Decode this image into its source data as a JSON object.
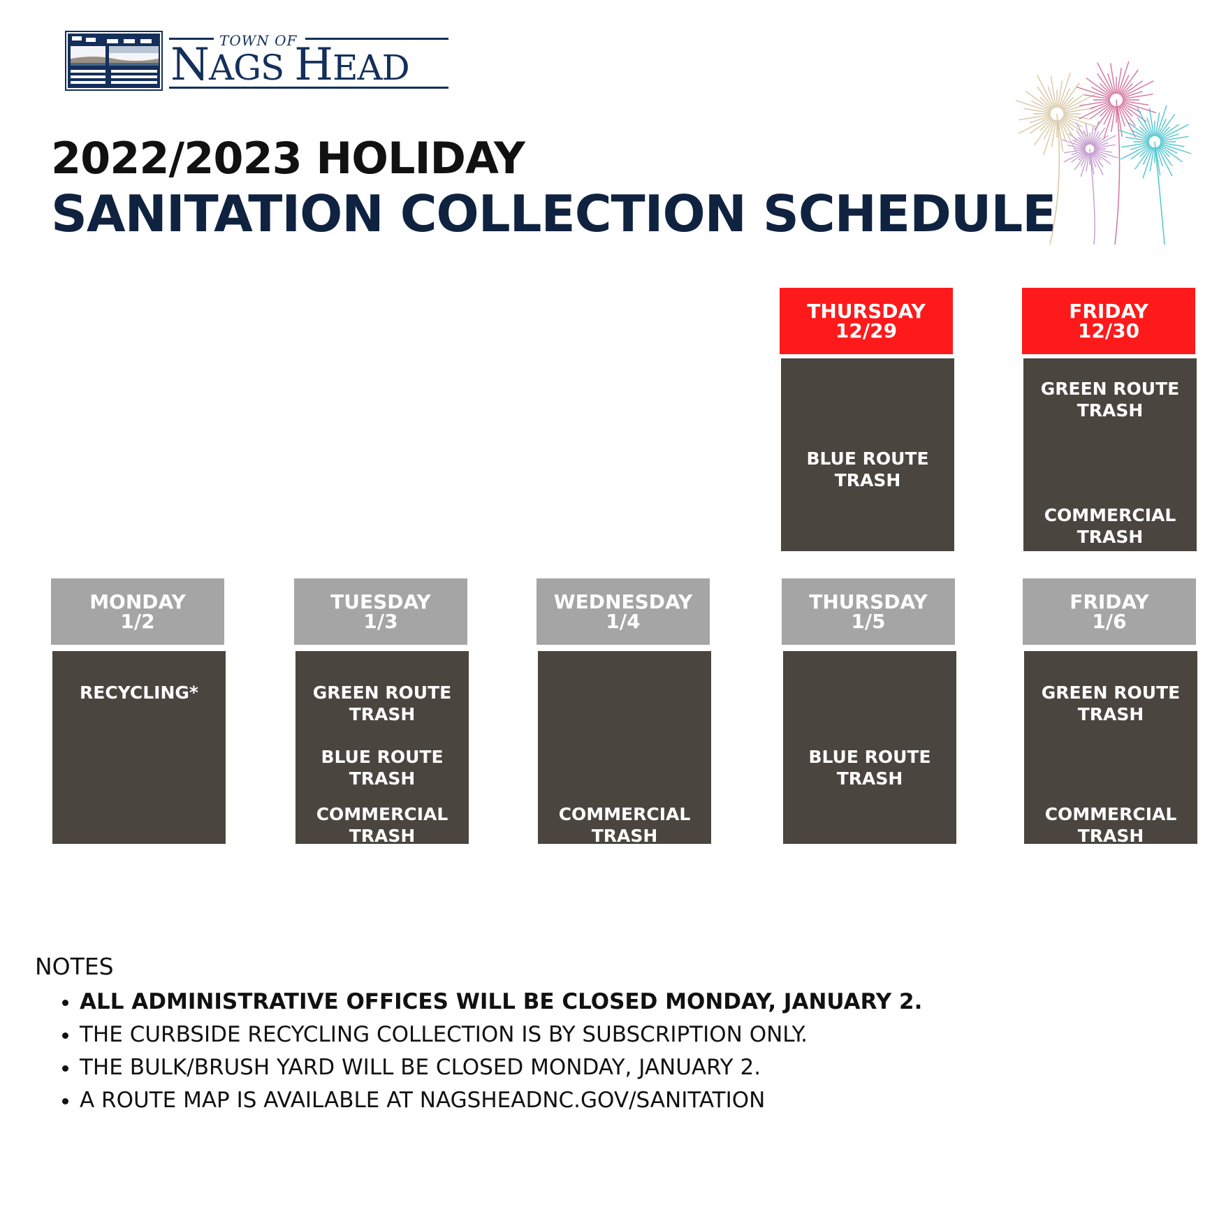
{
  "logo": {
    "town_of": "TOWN OF",
    "name_first": "N",
    "name_rest": "AGS ",
    "name_second": "H",
    "name_rest2": "EAD",
    "brand_color": "#14305a"
  },
  "title": {
    "line1": "2022/2023 HOLIDAY",
    "line2": "SANITATION COLLECTION SCHEDULE"
  },
  "colors": {
    "holiday_header": "#fe1a1a",
    "regular_header": "#a5a5a5",
    "cell": "#4b453f",
    "title": "#0f2340"
  },
  "week1": [
    {
      "day": "THURSDAY",
      "date": "12/29",
      "items": [
        "BLUE ROUTE\nTRASH"
      ]
    },
    {
      "day": "FRIDAY",
      "date": "12/30",
      "items": [
        "GREEN ROUTE\nTRASH",
        "COMMERCIAL\nTRASH"
      ]
    }
  ],
  "week2": [
    {
      "day": "MONDAY",
      "date": "1/2",
      "items": [
        "RECYCLING*"
      ]
    },
    {
      "day": "TUESDAY",
      "date": "1/3",
      "items": [
        "GREEN ROUTE\nTRASH",
        "BLUE ROUTE\nTRASH",
        "COMMERCIAL\nTRASH"
      ]
    },
    {
      "day": "WEDNESDAY",
      "date": "1/4",
      "items": [
        "COMMERCIAL\nTRASH"
      ]
    },
    {
      "day": "THURSDAY",
      "date": "1/5",
      "items": [
        "BLUE ROUTE\nTRASH"
      ]
    },
    {
      "day": "FRIDAY",
      "date": "1/6",
      "items": [
        "GREEN ROUTE\nTRASH",
        "COMMERCIAL\nTRASH"
      ]
    }
  ],
  "notes": {
    "heading": "NOTES",
    "items": [
      "ALL ADMINISTRATIVE OFFICES WILL BE CLOSED MONDAY, JANUARY 2.",
      "THE CURBSIDE RECYCLING COLLECTION IS BY SUBSCRIPTION ONLY.",
      "THE BULK/BRUSH YARD WILL BE CLOSED MONDAY, JANUARY 2.",
      "A ROUTE MAP IS AVAILABLE AT NAGSHEADNC.GOV/SANITATION"
    ]
  },
  "decoration": {
    "fireworks_colors": [
      "#d8c7a4",
      "#d4749f",
      "#c7a0d2",
      "#4fc6cf"
    ]
  }
}
